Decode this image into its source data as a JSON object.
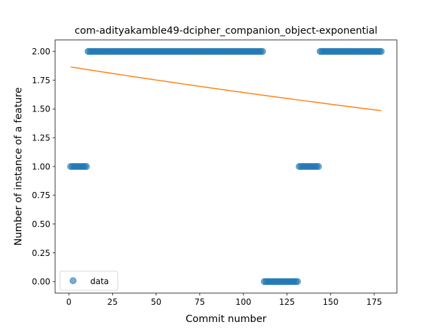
{
  "chart_data": {
    "type": "scatter",
    "title": "com-adityakamble49-dcipher_companion_object-exponential",
    "xlabel": "Commit number",
    "ylabel": "Number of instance of a feature",
    "xlim": [
      -7.9,
      188
    ],
    "ylim": [
      -0.1,
      2.1
    ],
    "xticks": [
      0,
      25,
      50,
      75,
      100,
      125,
      150,
      175
    ],
    "xtick_labels": [
      "0",
      "25",
      "50",
      "75",
      "100",
      "125",
      "150",
      "175"
    ],
    "yticks": [
      0,
      0.25,
      0.5,
      0.75,
      1.0,
      1.25,
      1.5,
      1.75,
      2.0
    ],
    "ytick_labels": [
      "0.00",
      "0.25",
      "0.50",
      "0.75",
      "1.00",
      "1.25",
      "1.50",
      "1.75",
      "2.00"
    ],
    "grid": false,
    "legend_position": "lower-left",
    "series": [
      {
        "name": "data",
        "kind": "scatter",
        "color": "#1f77b4",
        "segments": [
          {
            "x_start": 1,
            "x_end": 10,
            "y": 1
          },
          {
            "x_start": 11,
            "x_end": 111,
            "y": 2
          },
          {
            "x_start": 112,
            "x_end": 131,
            "y": 0
          },
          {
            "x_start": 132,
            "x_end": 143,
            "y": 1
          },
          {
            "x_start": 144,
            "x_end": 179,
            "y": 2
          }
        ]
      },
      {
        "kind": "line",
        "color": "#ff7f0e",
        "model": "exponential",
        "x_start": 1,
        "x_end": 179,
        "y_start": 1.865,
        "y_end": 1.485
      }
    ]
  }
}
